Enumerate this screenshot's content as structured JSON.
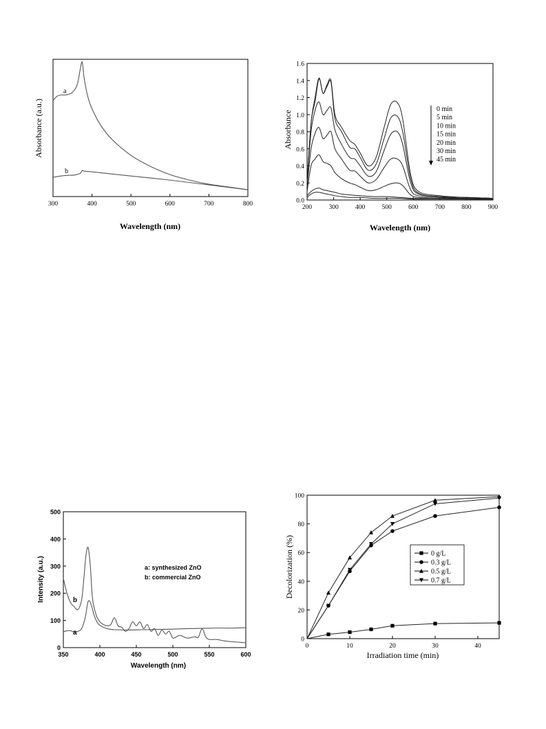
{
  "chart_data": [
    {
      "id": "tl",
      "type": "line",
      "xlabel": "Wavelength (nm)",
      "ylabel": "Absorbance (a.u.)",
      "xlim": [
        300,
        800
      ],
      "ylim": [
        0,
        1
      ],
      "xticks": [
        300,
        400,
        500,
        600,
        700,
        800
      ],
      "yticks_shown": false,
      "series": [
        {
          "name": "a",
          "x": [
            300,
            310,
            320,
            330,
            340,
            350,
            360,
            365,
            370,
            375,
            380,
            390,
            400,
            420,
            450,
            500,
            550,
            600,
            650,
            700,
            750,
            800
          ],
          "y": [
            0.7,
            0.73,
            0.74,
            0.74,
            0.745,
            0.76,
            0.8,
            0.85,
            0.93,
            0.98,
            0.86,
            0.72,
            0.64,
            0.53,
            0.42,
            0.3,
            0.22,
            0.16,
            0.12,
            0.09,
            0.07,
            0.05
          ]
        },
        {
          "name": "b",
          "x": [
            300,
            320,
            340,
            350,
            360,
            370,
            375,
            380,
            400,
            450,
            500,
            600,
            700,
            800
          ],
          "y": [
            0.14,
            0.15,
            0.155,
            0.155,
            0.16,
            0.17,
            0.19,
            0.185,
            0.18,
            0.165,
            0.15,
            0.12,
            0.085,
            0.05
          ]
        }
      ]
    },
    {
      "id": "tr",
      "type": "line",
      "xlabel": "Wavelength (nm)",
      "ylabel": "Absorbance",
      "xlim": [
        200,
        900
      ],
      "ylim": [
        0,
        1.6
      ],
      "xticks": [
        200,
        300,
        400,
        500,
        600,
        700,
        800,
        900
      ],
      "yticks": [
        "0.0",
        "0.2",
        "0.4",
        "0.6",
        "0.8",
        "1.0",
        "1.2",
        "1.4",
        "1.6"
      ],
      "legend": [
        "0  min",
        "5  min",
        "10 min",
        "15 min",
        "20 min",
        "30 min",
        "45 min"
      ],
      "series": [
        {
          "name": "0  min",
          "x": [
            200,
            215,
            230,
            245,
            260,
            275,
            290,
            305,
            330,
            360,
            380,
            400,
            430,
            460,
            490,
            515,
            540,
            560,
            590,
            620,
            700,
            800,
            900
          ],
          "y": [
            0.2,
            0.9,
            1.2,
            1.43,
            1.25,
            1.35,
            1.4,
            1.0,
            0.85,
            0.7,
            0.65,
            0.55,
            0.4,
            0.5,
            0.85,
            1.12,
            1.14,
            0.95,
            0.3,
            0.1,
            0.05,
            0.03,
            0.02
          ]
        },
        {
          "name": "5  min",
          "x": [
            200,
            215,
            230,
            245,
            260,
            275,
            290,
            305,
            330,
            360,
            380,
            400,
            430,
            460,
            490,
            515,
            540,
            560,
            590,
            620,
            700,
            800,
            900
          ],
          "y": [
            0.2,
            0.9,
            1.15,
            1.42,
            1.25,
            1.33,
            1.38,
            0.95,
            0.8,
            0.62,
            0.6,
            0.5,
            0.35,
            0.42,
            0.72,
            0.96,
            0.98,
            0.8,
            0.25,
            0.08,
            0.04,
            0.03,
            0.02
          ]
        },
        {
          "name": "10 min",
          "x": [
            200,
            215,
            230,
            245,
            260,
            275,
            290,
            305,
            330,
            360,
            380,
            400,
            430,
            460,
            490,
            515,
            540,
            560,
            590,
            620,
            700,
            800,
            900
          ],
          "y": [
            0.2,
            0.8,
            1.05,
            1.15,
            1.0,
            1.05,
            1.08,
            0.82,
            0.65,
            0.5,
            0.48,
            0.4,
            0.28,
            0.33,
            0.58,
            0.77,
            0.8,
            0.65,
            0.2,
            0.07,
            0.04,
            0.03,
            0.02
          ]
        },
        {
          "name": "15 min",
          "x": [
            200,
            215,
            230,
            245,
            260,
            275,
            290,
            305,
            330,
            360,
            380,
            400,
            430,
            460,
            490,
            515,
            540,
            560,
            590,
            620,
            700,
            800,
            900
          ],
          "y": [
            0.15,
            0.6,
            0.78,
            0.85,
            0.72,
            0.76,
            0.8,
            0.6,
            0.48,
            0.35,
            0.34,
            0.28,
            0.2,
            0.24,
            0.38,
            0.48,
            0.48,
            0.4,
            0.12,
            0.05,
            0.03,
            0.02,
            0.02
          ]
        },
        {
          "name": "20 min",
          "x": [
            200,
            215,
            230,
            245,
            260,
            275,
            290,
            305,
            330,
            360,
            380,
            400,
            430,
            460,
            490,
            515,
            540,
            560,
            590,
            620,
            700,
            800,
            900
          ],
          "y": [
            0.1,
            0.4,
            0.48,
            0.53,
            0.45,
            0.43,
            0.4,
            0.32,
            0.25,
            0.2,
            0.18,
            0.15,
            0.11,
            0.12,
            0.16,
            0.19,
            0.2,
            0.17,
            0.06,
            0.03,
            0.02,
            0.02,
            0.01
          ]
        },
        {
          "name": "30 min",
          "x": [
            200,
            215,
            230,
            245,
            260,
            275,
            290,
            305,
            330,
            360,
            400,
            450,
            500,
            550,
            600,
            700,
            800,
            900
          ],
          "y": [
            0.05,
            0.1,
            0.13,
            0.14,
            0.12,
            0.11,
            0.1,
            0.09,
            0.07,
            0.06,
            0.05,
            0.04,
            0.04,
            0.03,
            0.02,
            0.02,
            0.01,
            0.01
          ]
        },
        {
          "name": "45 min",
          "x": [
            200,
            215,
            230,
            245,
            260,
            275,
            290,
            305,
            330,
            360,
            400,
            450,
            500,
            550,
            600,
            700,
            800,
            900
          ],
          "y": [
            0.03,
            0.07,
            0.09,
            0.09,
            0.08,
            0.07,
            0.06,
            0.05,
            0.04,
            0.03,
            0.03,
            0.02,
            0.02,
            0.02,
            0.01,
            0.01,
            0.01,
            0.01
          ]
        }
      ]
    },
    {
      "id": "bl",
      "type": "line",
      "xlabel": "Wavelength (nm)",
      "ylabel": "Intensity (a.u.)",
      "xlim": [
        350,
        600
      ],
      "ylim": [
        0,
        500
      ],
      "xticks": [
        350,
        400,
        450,
        500,
        550,
        600
      ],
      "yticks": [
        0,
        100,
        200,
        300,
        400,
        500
      ],
      "legend": [
        "a: synthesized ZnO",
        "b: commercial ZnO"
      ],
      "series": [
        {
          "name": "a",
          "x": [
            350,
            355,
            360,
            365,
            370,
            375,
            380,
            384,
            388,
            392,
            396,
            400,
            410,
            420,
            440,
            460,
            480,
            500,
            520,
            540,
            560,
            580,
            600
          ],
          "y": [
            58,
            62,
            62,
            58,
            60,
            70,
            110,
            170,
            160,
            120,
            95,
            82,
            70,
            66,
            65,
            66,
            67,
            68,
            70,
            71,
            72,
            72,
            73
          ]
        },
        {
          "name": "b",
          "x": [
            350,
            355,
            360,
            365,
            370,
            375,
            378,
            381,
            384,
            387,
            390,
            395,
            400,
            405,
            410,
            415,
            420,
            425,
            430,
            435,
            440,
            445,
            450,
            455,
            460,
            465,
            470,
            475,
            480,
            485,
            490,
            495,
            500,
            505,
            510,
            520,
            530,
            535,
            540,
            545,
            550,
            560,
            570,
            580,
            590,
            600
          ],
          "y": [
            255,
            200,
            165,
            150,
            140,
            175,
            250,
            340,
            368,
            300,
            180,
            120,
            95,
            85,
            80,
            85,
            110,
            80,
            75,
            60,
            70,
            95,
            80,
            95,
            70,
            85,
            60,
            70,
            45,
            65,
            50,
            60,
            35,
            40,
            45,
            35,
            40,
            38,
            70,
            40,
            30,
            30,
            25,
            22,
            20,
            18
          ]
        }
      ]
    },
    {
      "id": "br",
      "type": "line",
      "xlabel": "Irradiation time (min)",
      "ylabel": "Decolorization (%)",
      "xlim": [
        0,
        45
      ],
      "ylim": [
        0,
        100
      ],
      "xticks": [
        0,
        10,
        20,
        30,
        40
      ],
      "yticks": [
        0,
        20,
        40,
        60,
        80,
        100
      ],
      "legend": [
        "0  g/L",
        "0.3 g/L",
        "0.5 g/L",
        "0.7 g/L"
      ],
      "series": [
        {
          "name": "0  g/L",
          "marker": "square",
          "x": [
            0,
            5,
            10,
            15,
            20,
            30,
            45
          ],
          "y": [
            0,
            3,
            4.5,
            6.5,
            9,
            10.5,
            11
          ]
        },
        {
          "name": "0.3 g/L",
          "marker": "circle",
          "x": [
            0,
            5,
            10,
            15,
            20,
            30,
            45
          ],
          "y": [
            0,
            23,
            47,
            65,
            75,
            85.5,
            91.5
          ]
        },
        {
          "name": "0.5 g/L",
          "marker": "triangle-up",
          "x": [
            0,
            5,
            10,
            15,
            20,
            30,
            45
          ],
          "y": [
            0,
            32,
            56.5,
            74,
            85.5,
            96.5,
            99
          ]
        },
        {
          "name": "0.7 g/L",
          "marker": "triangle-down",
          "x": [
            0,
            5,
            10,
            15,
            20,
            30,
            45
          ],
          "y": [
            0,
            23,
            48,
            66,
            80,
            94,
            98
          ]
        }
      ]
    }
  ]
}
